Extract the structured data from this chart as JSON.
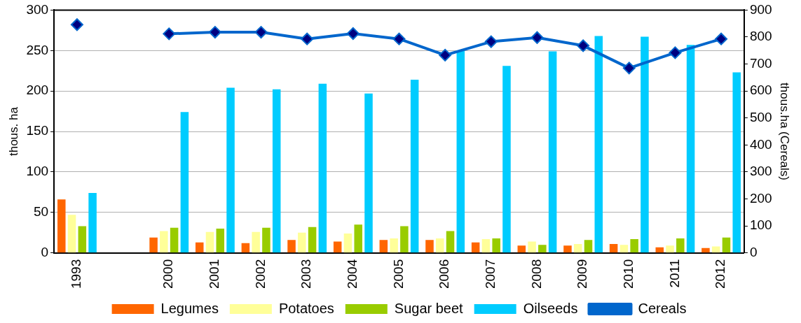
{
  "chart_data": {
    "type": "bar",
    "ylabel": "thous. ha",
    "y2label": "thous.ha (Cereals)",
    "categories": [
      "1993",
      null,
      "2000",
      "2001",
      "2002",
      "2003",
      "2004",
      "2005",
      "2006",
      "2007",
      "2008",
      "2009",
      "2010",
      "2011",
      "2012"
    ],
    "series": [
      {
        "name": "Legumes",
        "color": "#ff6600",
        "values": [
          66,
          null,
          19,
          13,
          12,
          16,
          14,
          16,
          16,
          13,
          9,
          9,
          11,
          7,
          6
        ]
      },
      {
        "name": "Potatoes",
        "color": "#ffff99",
        "values": [
          47,
          null,
          27,
          26,
          26,
          25,
          24,
          18,
          18,
          17,
          14,
          11,
          10,
          9,
          8
        ]
      },
      {
        "name": "Sugar beet",
        "color": "#99cc00",
        "values": [
          33,
          null,
          31,
          30,
          31,
          32,
          35,
          33,
          27,
          18,
          10,
          16,
          17,
          18,
          19
        ]
      },
      {
        "name": "Oilseeds",
        "color": "#00ccff",
        "values": [
          74,
          null,
          174,
          204,
          202,
          209,
          197,
          214,
          250,
          231,
          249,
          268,
          267,
          257,
          223
        ]
      },
      {
        "name": "Cereals",
        "type": "line",
        "axis": "y2",
        "color": "#0066cc",
        "marker": "diamond",
        "values": [
          846,
          null,
          812,
          818,
          818,
          793,
          813,
          793,
          733,
          783,
          798,
          768,
          685,
          742,
          793
        ]
      }
    ],
    "ylim": [
      0,
      300
    ],
    "yticks": [
      0,
      50,
      100,
      150,
      200,
      250,
      300
    ],
    "y2lim": [
      0,
      900
    ],
    "y2ticks": [
      0,
      100,
      200,
      300,
      400,
      500,
      600,
      700,
      800,
      900
    ],
    "grid": "y",
    "legend": "bottom"
  }
}
